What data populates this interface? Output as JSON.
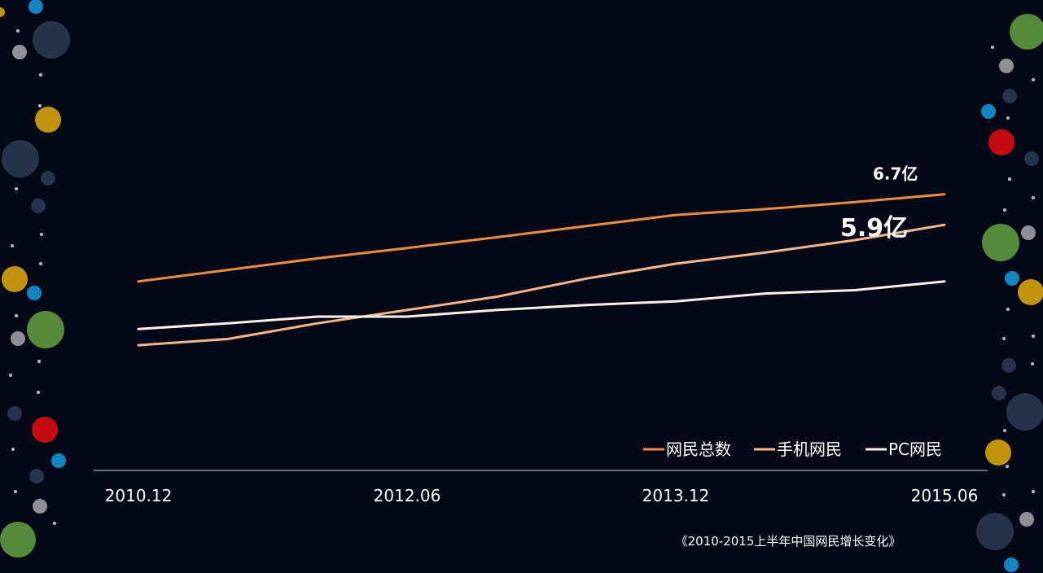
{
  "chart_data": {
    "type": "line",
    "x": [
      "2010.12",
      "2011.06",
      "2011.12",
      "2012.06",
      "2012.12",
      "2013.06",
      "2013.12",
      "2014.06",
      "2014.12",
      "2015.06"
    ],
    "tick_labels": [
      "2010.12",
      "2012.06",
      "2013.12",
      "2015.06"
    ],
    "ylim": [
      0,
      10
    ],
    "series": [
      {
        "name": "网民总数",
        "color": "#ee8a3c",
        "values": [
          4.57,
          4.85,
          5.13,
          5.38,
          5.64,
          5.91,
          6.18,
          6.32,
          6.49,
          6.68
        ]
      },
      {
        "name": "手机网民",
        "color": "#f7b58a",
        "values": [
          3.03,
          3.18,
          3.56,
          3.88,
          4.2,
          4.64,
          5.0,
          5.27,
          5.57,
          5.94
        ]
      },
      {
        "name": "PC网民",
        "color": "#fdeee6",
        "values": [
          3.42,
          3.56,
          3.72,
          3.72,
          3.88,
          4.0,
          4.09,
          4.28,
          4.36,
          4.57
        ]
      }
    ],
    "annotations": [
      {
        "text": "6.7亿",
        "series": 0,
        "index": 9
      },
      {
        "text": "5.9亿",
        "series": 1,
        "index": 9
      }
    ],
    "legend": "bottom-right",
    "grid": false
  },
  "caption": "《2010-2015上半年中国网民增长变化》",
  "decor_colors": {
    "slate": "#26334a",
    "gold": "#c1920b",
    "green": "#558a3a",
    "red": "#c40a0f",
    "blue": "#0e86c2",
    "grey": "#8e8f94",
    "dot": "#b7bcc8"
  }
}
